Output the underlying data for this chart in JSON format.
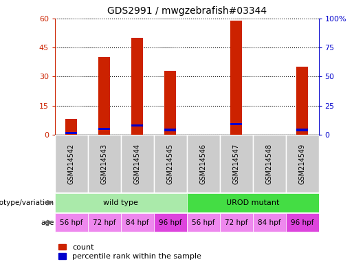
{
  "title": "GDS2991 / mwgzebrafish#03344",
  "samples": [
    "GSM214542",
    "GSM214543",
    "GSM214544",
    "GSM214545",
    "GSM214546",
    "GSM214547",
    "GSM214548",
    "GSM214549"
  ],
  "counts": [
    8,
    40,
    50,
    33,
    0,
    59,
    0,
    35
  ],
  "percentile_ranks": [
    1.5,
    5,
    8,
    4,
    0,
    9,
    0,
    4
  ],
  "ylim_left": [
    0,
    60
  ],
  "ylim_right": [
    0,
    100
  ],
  "yticks_left": [
    0,
    15,
    30,
    45,
    60
  ],
  "ytick_labels_left": [
    "0",
    "15",
    "30",
    "45",
    "60"
  ],
  "yticks_right": [
    0,
    25,
    50,
    75,
    100
  ],
  "ytick_labels_right": [
    "0",
    "25",
    "50",
    "75",
    "100%"
  ],
  "bar_color": "#cc2200",
  "percentile_color": "#0000cc",
  "genotype_groups": [
    {
      "label": "wild type",
      "start": 0,
      "end": 4,
      "color": "#aaeaaa"
    },
    {
      "label": "UROD mutant",
      "start": 4,
      "end": 8,
      "color": "#44dd44"
    }
  ],
  "age_labels": [
    "56 hpf",
    "72 hpf",
    "84 hpf",
    "96 hpf",
    "56 hpf",
    "72 hpf",
    "84 hpf",
    "96 hpf"
  ],
  "age_colors": [
    "#ee88ee",
    "#ee88ee",
    "#ee88ee",
    "#dd44dd",
    "#ee88ee",
    "#ee88ee",
    "#ee88ee",
    "#dd44dd"
  ],
  "genotype_label": "genotype/variation",
  "age_label": "age",
  "legend_count_label": "count",
  "legend_percentile_label": "percentile rank within the sample",
  "background_color": "#ffffff",
  "plot_bg_color": "#ffffff",
  "sample_row_bg": "#cccccc",
  "bar_width": 0.35
}
